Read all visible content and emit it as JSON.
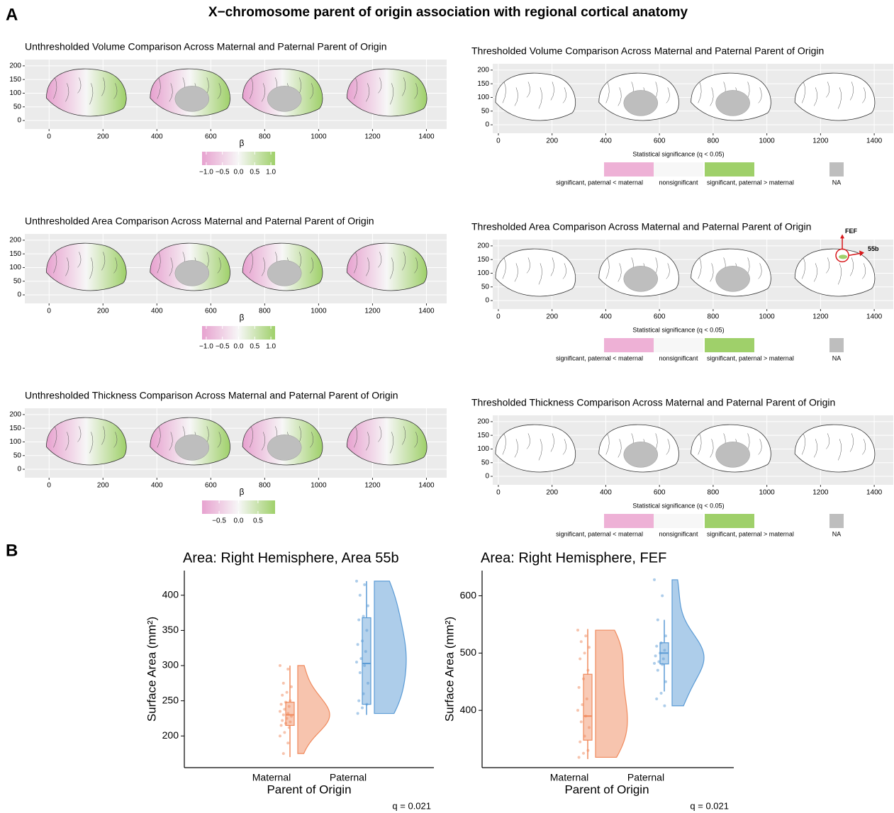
{
  "title": "X−chromosome parent of origin association with regional cortical anatomy",
  "panel_labels": [
    "A",
    "B"
  ],
  "chart_data": [
    {
      "type": "brain-map",
      "title": "Unthresholded Volume Comparison Across Maternal and Paternal Parent of Origin",
      "thresholded": false,
      "xlim": [
        -90,
        1475
      ],
      "ylim": [
        -31,
        223
      ],
      "xticks": [
        0,
        200,
        400,
        600,
        800,
        1000,
        1200,
        1400
      ],
      "yticks": [
        0,
        50,
        100,
        150,
        200
      ],
      "grid": true,
      "colorbar": {
        "title": "β",
        "lim": [
          -1.13,
          1.13
        ],
        "colors": [
          "#e7a1cf",
          "#f7f7f7",
          "#9fd06a"
        ],
        "ticks": [
          {
            "value": -1,
            "label": "−1.0"
          },
          {
            "value": -0.5,
            "label": "−0.5"
          },
          {
            "value": 0,
            "label": "0.0"
          },
          {
            "value": 0.5,
            "label": "0.5"
          },
          {
            "value": 1,
            "label": "1.0"
          }
        ]
      }
    },
    {
      "type": "brain-map",
      "title": "Thresholded Volume Comparison Across Maternal and Paternal Parent of Origin",
      "thresholded": true,
      "xlim": [
        -21,
        1471
      ],
      "ylim": [
        -31,
        223
      ],
      "xticks": [
        0,
        200,
        400,
        600,
        800,
        1000,
        1200,
        1400
      ],
      "yticks": [
        0,
        50,
        100,
        150,
        200
      ],
      "grid": true,
      "legend": {
        "title": "Statistical significance (q < 0.05)",
        "items": [
          {
            "label": "significant, paternal < maternal",
            "color": "#eeb1d6"
          },
          {
            "label": "nonsignificant",
            "color": "#f7f7f7"
          },
          {
            "label": "significant, paternal > maternal",
            "color": "#9fd06a"
          },
          {
            "label": "NA",
            "color": "#bebebe"
          }
        ]
      }
    },
    {
      "type": "brain-map",
      "title": "Unthresholded Area Comparison Across Maternal and Paternal Parent of Origin",
      "thresholded": false,
      "xlim": [
        -90,
        1475
      ],
      "ylim": [
        -31,
        223
      ],
      "xticks": [
        0,
        200,
        400,
        600,
        800,
        1000,
        1200,
        1400
      ],
      "yticks": [
        0,
        50,
        100,
        150,
        200
      ],
      "grid": true,
      "colorbar": {
        "title": "β",
        "lim": [
          -1.13,
          1.13
        ],
        "colors": [
          "#e7a1cf",
          "#f7f7f7",
          "#9fd06a"
        ],
        "ticks": [
          {
            "value": -1,
            "label": "−1.0"
          },
          {
            "value": -0.5,
            "label": "−0.5"
          },
          {
            "value": 0,
            "label": "0.0"
          },
          {
            "value": 0.5,
            "label": "0.5"
          },
          {
            "value": 1,
            "label": "1.0"
          }
        ]
      }
    },
    {
      "type": "brain-map",
      "title": "Thresholded Area Comparison Across Maternal and Paternal Parent of Origin",
      "thresholded": true,
      "xlim": [
        -21,
        1471
      ],
      "ylim": [
        -31,
        223
      ],
      "xticks": [
        0,
        200,
        400,
        600,
        800,
        1000,
        1200,
        1400
      ],
      "yticks": [
        0,
        50,
        100,
        150,
        200
      ],
      "grid": true,
      "annotations": [
        "FEF",
        "55b"
      ],
      "legend": {
        "title": "Statistical significance (q < 0.05)",
        "items": [
          {
            "label": "significant, paternal < maternal",
            "color": "#eeb1d6"
          },
          {
            "label": "nonsignificant",
            "color": "#f7f7f7"
          },
          {
            "label": "significant, paternal > maternal",
            "color": "#9fd06a"
          },
          {
            "label": "NA",
            "color": "#bebebe"
          }
        ]
      }
    },
    {
      "type": "brain-map",
      "title": "Unthresholded Thickness Comparison Across Maternal and Paternal Parent of Origin",
      "thresholded": false,
      "xlim": [
        -90,
        1475
      ],
      "ylim": [
        -31,
        223
      ],
      "xticks": [
        0,
        200,
        400,
        600,
        800,
        1000,
        1200,
        1400
      ],
      "yticks": [
        0,
        50,
        100,
        150,
        200
      ],
      "grid": true,
      "colorbar": {
        "title": "β",
        "lim": [
          -0.94,
          0.94
        ],
        "colors": [
          "#e7a1cf",
          "#f7f7f7",
          "#9fd06a"
        ],
        "ticks": [
          {
            "value": -0.5,
            "label": "−0.5"
          },
          {
            "value": 0,
            "label": "0.0"
          },
          {
            "value": 0.5,
            "label": "0.5"
          }
        ]
      }
    },
    {
      "type": "brain-map",
      "title": "Thresholded Thickness Comparison Across Maternal and Paternal Parent of Origin",
      "thresholded": true,
      "xlim": [
        -21,
        1471
      ],
      "ylim": [
        -31,
        223
      ],
      "xticks": [
        0,
        200,
        400,
        600,
        800,
        1000,
        1200,
        1400
      ],
      "yticks": [
        0,
        50,
        100,
        150,
        200
      ],
      "grid": true,
      "legend": {
        "title": "Statistical significance (q < 0.05)",
        "items": [
          {
            "label": "significant, paternal < maternal",
            "color": "#eeb1d6"
          },
          {
            "label": "nonsignificant",
            "color": "#f7f7f7"
          },
          {
            "label": "significant, paternal > maternal",
            "color": "#9fd06a"
          },
          {
            "label": "NA",
            "color": "#bebebe"
          }
        ]
      }
    },
    {
      "type": "raincloud",
      "title": "Area: Right Hemisphere, Area 55b",
      "xlabel": "Parent of Origin",
      "ylabel": "Surface Area (mm²)",
      "annotation": "q = 0.021",
      "ylim": [
        155,
        435
      ],
      "yticks": [
        200,
        250,
        300,
        350,
        400
      ],
      "categories": [
        "Maternal",
        "Paternal"
      ],
      "groups": [
        {
          "color": "#f08a5d",
          "values": [
            300,
            295,
            275,
            270,
            262,
            258,
            250,
            248,
            245,
            242,
            238,
            235,
            232,
            230,
            228,
            225,
            222,
            220,
            218,
            215,
            212,
            205,
            200,
            190,
            175
          ],
          "box": {
            "whisker_low": 170,
            "q1": 215,
            "median": 230,
            "q3": 248,
            "whisker_high": 300
          }
        },
        {
          "color": "#5b9bd5",
          "values": [
            420,
            415,
            400,
            385,
            370,
            365,
            350,
            335,
            330,
            320,
            310,
            305,
            300,
            290,
            275,
            260,
            250,
            245,
            240,
            232
          ],
          "box": {
            "whisker_low": 230,
            "q1": 245,
            "median": 303,
            "q3": 368,
            "whisker_high": 420
          }
        }
      ]
    },
    {
      "type": "raincloud",
      "title": "Area: Right Hemisphere, FEF",
      "xlabel": "Parent of Origin",
      "ylabel": "Surface Area (mm²)",
      "annotation": "q = 0.021",
      "ylim": [
        300,
        644
      ],
      "yticks": [
        400,
        500,
        600
      ],
      "categories": [
        "Maternal",
        "Paternal"
      ],
      "groups": [
        {
          "color": "#f08a5d",
          "values": [
            540,
            530,
            520,
            510,
            500,
            490,
            470,
            455,
            440,
            420,
            410,
            400,
            390,
            380,
            370,
            355,
            345,
            330,
            325,
            318
          ],
          "box": {
            "whisker_low": 315,
            "q1": 348,
            "median": 390,
            "q3": 463,
            "whisker_high": 542
          }
        },
        {
          "color": "#5b9bd5",
          "values": [
            628,
            600,
            558,
            530,
            518,
            512,
            505,
            500,
            495,
            490,
            485,
            482,
            480,
            470,
            450,
            430,
            420,
            408
          ],
          "box": {
            "whisker_low": 433,
            "q1": 481,
            "median": 500,
            "q3": 518,
            "whisker_high": 558
          }
        }
      ]
    }
  ]
}
